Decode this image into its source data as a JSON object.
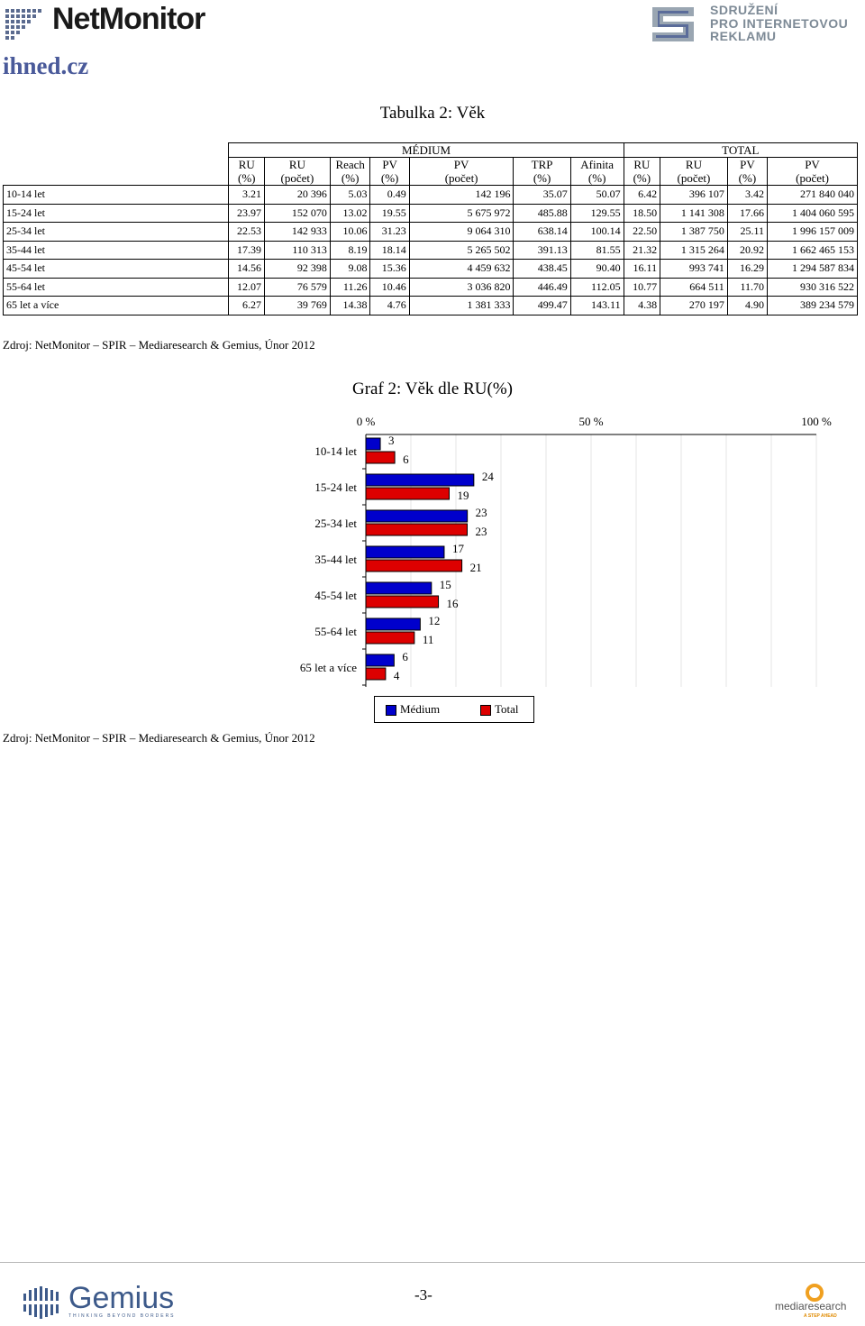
{
  "header": {
    "logo_text": "NetMonitor",
    "partner_logo_lines": [
      "SDRUŽENÍ",
      "PRO INTERNETOVOU",
      "REKLAMU"
    ],
    "site": "ihned.cz"
  },
  "table": {
    "title": "Tabulka 2: Věk",
    "group_medium": "MÉDIUM",
    "group_total": "TOTAL",
    "columns": [
      [
        "RU",
        "(%)"
      ],
      [
        "RU",
        "(počet)"
      ],
      [
        "Reach",
        "(%)"
      ],
      [
        "PV",
        "(%)"
      ],
      [
        "PV",
        "(počet)"
      ],
      [
        "TRP",
        "(%)"
      ],
      [
        "Afinita",
        "(%)"
      ],
      [
        "RU",
        "(%)"
      ],
      [
        "RU",
        "(počet)"
      ],
      [
        "PV",
        "(%)"
      ],
      [
        "PV",
        "(počet)"
      ]
    ],
    "rows": [
      [
        "10-14 let",
        "3.21",
        "20 396",
        "5.03",
        "0.49",
        "142 196",
        "35.07",
        "50.07",
        "6.42",
        "396 107",
        "3.42",
        "271 840 040"
      ],
      [
        "15-24 let",
        "23.97",
        "152 070",
        "13.02",
        "19.55",
        "5 675 972",
        "485.88",
        "129.55",
        "18.50",
        "1 141 308",
        "17.66",
        "1 404 060 595"
      ],
      [
        "25-34 let",
        "22.53",
        "142 933",
        "10.06",
        "31.23",
        "9 064 310",
        "638.14",
        "100.14",
        "22.50",
        "1 387 750",
        "25.11",
        "1 996 157 009"
      ],
      [
        "35-44 let",
        "17.39",
        "110 313",
        "8.19",
        "18.14",
        "5 265 502",
        "391.13",
        "81.55",
        "21.32",
        "1 315 264",
        "20.92",
        "1 662 465 153"
      ],
      [
        "45-54 let",
        "14.56",
        "92 398",
        "9.08",
        "15.36",
        "4 459 632",
        "438.45",
        "90.40",
        "16.11",
        "993 741",
        "16.29",
        "1 294 587 834"
      ],
      [
        "55-64 let",
        "12.07",
        "76 579",
        "11.26",
        "10.46",
        "3 036 820",
        "446.49",
        "112.05",
        "10.77",
        "664 511",
        "11.70",
        "930 316 522"
      ],
      [
        "65 let a více",
        "6.27",
        "39 769",
        "14.38",
        "4.76",
        "1 381 333",
        "499.47",
        "143.11",
        "4.38",
        "270 197",
        "4.90",
        "389 234 579"
      ]
    ],
    "source": "Zdroj: NetMonitor – SPIR – Mediaresearch & Gemius, Únor 2012"
  },
  "chart_data": {
    "type": "bar",
    "orientation": "horizontal",
    "title": "Graf 2: Věk dle RU(%)",
    "categories": [
      "10-14 let",
      "15-24 let",
      "25-34 let",
      "35-44 let",
      "45-54 let",
      "55-64 let",
      "65 let a více"
    ],
    "series": [
      {
        "name": "Médium",
        "color": "#0000cc",
        "values": [
          3.21,
          23.97,
          22.53,
          17.39,
          14.56,
          12.07,
          6.27
        ],
        "labels": [
          "3",
          "24",
          "23",
          "17",
          "15",
          "12",
          "6"
        ]
      },
      {
        "name": "Total",
        "color": "#dd0000",
        "values": [
          6.42,
          18.5,
          22.5,
          21.32,
          16.11,
          10.77,
          4.38
        ],
        "labels": [
          "6",
          "19",
          "23",
          "21",
          "16",
          "11",
          "4"
        ]
      }
    ],
    "xlim": [
      0,
      100
    ],
    "tick_labels": [
      "0 %",
      "50 %",
      "100 %"
    ],
    "legend_position": "bottom",
    "source": "Zdroj: NetMonitor – SPIR – Mediaresearch & Gemius, Únor 2012"
  },
  "footer": {
    "page": "-3-",
    "logo_left": "Gemius",
    "logo_left_sub": "THINKING BEYOND BORDERS",
    "logo_right": "mediaresearch",
    "logo_right_sub": "A STEP AHEAD"
  }
}
